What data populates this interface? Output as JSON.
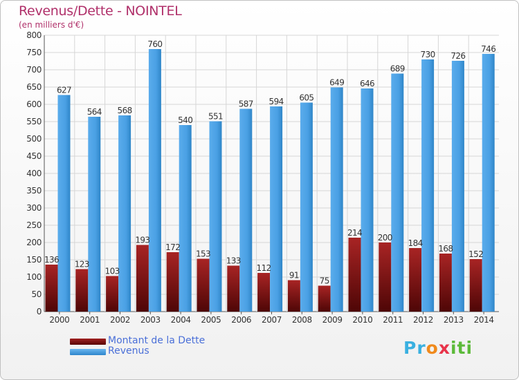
{
  "chart_data": {
    "type": "bar",
    "title": "Revenus/Dette - NOINTEL",
    "subtitle": "(en milliers d'€)",
    "categories": [
      "2000",
      "2001",
      "2002",
      "2003",
      "2004",
      "2005",
      "2006",
      "2007",
      "2008",
      "2009",
      "2010",
      "2011",
      "2012",
      "2013",
      "2014"
    ],
    "series": [
      {
        "name": "Montant de la Dette",
        "color": "#7a1010",
        "values": [
          136,
          123,
          103,
          193,
          172,
          153,
          133,
          112,
          91,
          75,
          214,
          200,
          184,
          168,
          152
        ]
      },
      {
        "name": "Revenus",
        "color": "#4aa3e6",
        "values": [
          627,
          564,
          568,
          760,
          540,
          551,
          587,
          594,
          605,
          649,
          646,
          689,
          730,
          726,
          746
        ]
      }
    ],
    "yticks": [
      0,
      50,
      100,
      150,
      200,
      250,
      300,
      350,
      400,
      450,
      500,
      550,
      600,
      650,
      700,
      750,
      800
    ],
    "ylim": [
      0,
      800
    ],
    "grid": true,
    "legend_position": "bottom-left"
  },
  "logo": {
    "parts": [
      "Pr",
      "o",
      "x",
      "iti"
    ]
  }
}
